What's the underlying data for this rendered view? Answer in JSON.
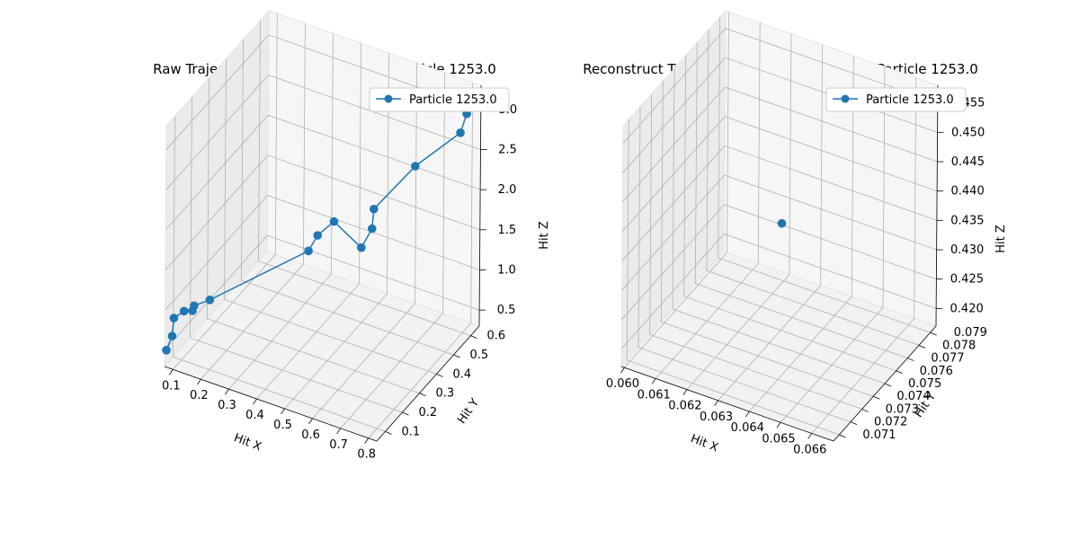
{
  "colors": {
    "series": "#1f77b4",
    "grid": "#b0b0b0",
    "pane": "#f2f2f2"
  },
  "chart_data": [
    {
      "type": "line3d",
      "title": "Raw Trajectory Plot for Event 3210, Particle 1253.0",
      "xlabel": "Hit X",
      "ylabel": "Hit Y",
      "zlabel": "Hit Z",
      "xticks": [
        "0.1",
        "0.2",
        "0.3",
        "0.4",
        "0.5",
        "0.6",
        "0.7",
        "0.8"
      ],
      "yticks": [
        "0.1",
        "0.2",
        "0.3",
        "0.4",
        "0.5",
        "0.6"
      ],
      "zticks": [
        "0.5",
        "1.0",
        "1.5",
        "2.0",
        "2.5",
        "3.0"
      ],
      "xlim": [
        0.07,
        0.83
      ],
      "ylim": [
        0.05,
        0.65
      ],
      "zlim": [
        0.3,
        3.3
      ],
      "legend": "top-right",
      "series": [
        {
          "name": "Particle 1253.0",
          "marker": "o",
          "x": [
            0.07,
            0.09,
            0.09,
            0.12,
            0.15,
            0.15,
            0.2,
            0.46,
            0.48,
            0.52,
            0.6,
            0.62,
            0.62,
            0.7,
            0.8,
            0.81,
            0.82
          ],
          "y": [
            0.06,
            0.06,
            0.07,
            0.08,
            0.08,
            0.09,
            0.1,
            0.25,
            0.27,
            0.3,
            0.33,
            0.36,
            0.37,
            0.48,
            0.58,
            0.6,
            0.62
          ],
          "z": [
            0.48,
            0.68,
            0.88,
            0.98,
            1.02,
            1.06,
            1.17,
            1.74,
            1.91,
            2.06,
            1.76,
            1.95,
            2.17,
            2.54,
            2.84,
            3.04,
            3.23
          ]
        }
      ]
    },
    {
      "type": "line3d",
      "title": "Reconstruct Trajectory Plot for Event 3210, Particle 1253.0",
      "xlabel": "Hit X",
      "ylabel": "Hit Y",
      "zlabel": "Hit Z",
      "xticks": [
        "0.060",
        "0.061",
        "0.062",
        "0.063",
        "0.064",
        "0.065",
        "0.066"
      ],
      "yticks": [
        "0.071",
        "0.072",
        "0.073",
        "0.074",
        "0.075",
        "0.076",
        "0.077",
        "0.078",
        "0.079"
      ],
      "zticks": [
        "0.420",
        "0.425",
        "0.430",
        "0.435",
        "0.440",
        "0.445",
        "0.450",
        "0.455"
      ],
      "xlim": [
        0.0599,
        0.0667
      ],
      "ylim": [
        0.0705,
        0.0795
      ],
      "zlim": [
        0.417,
        0.458
      ],
      "legend": "top-right",
      "series": [
        {
          "name": "Particle 1253.0",
          "marker": "o",
          "x": [
            0.0633
          ],
          "y": [
            0.0752
          ],
          "z": [
            0.4375
          ]
        }
      ]
    }
  ]
}
